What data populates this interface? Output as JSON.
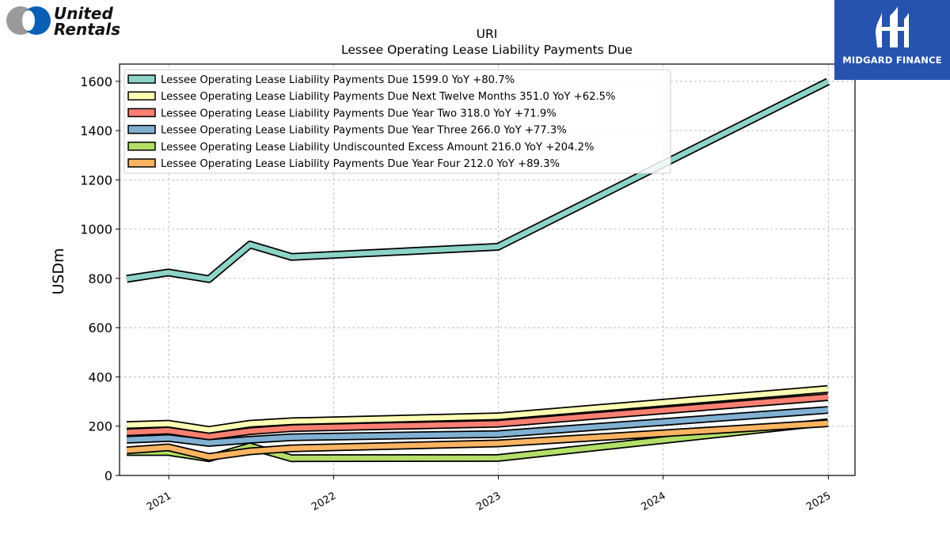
{
  "brand_left": {
    "name_line1": "United",
    "name_line2": "Rentals"
  },
  "brand_right": {
    "name": "MIDGARD FINANCE"
  },
  "chart_data": {
    "type": "area",
    "title": "URI",
    "subtitle": "Lessee Operating Lease Liability Payments Due",
    "xlabel": "",
    "ylabel": "USDm",
    "ylim": [
      0,
      1670
    ],
    "xlim": [
      "2020-09-14",
      "2025-03-01"
    ],
    "grid": true,
    "legend_position": "top-left",
    "yticks": [
      0,
      200,
      400,
      600,
      800,
      1000,
      1200,
      1400,
      1600
    ],
    "xticks": [
      {
        "date": "2021-01-01",
        "label": "2021"
      },
      {
        "date": "2022-01-01",
        "label": "2022"
      },
      {
        "date": "2023-01-01",
        "label": "2023"
      },
      {
        "date": "2024-01-01",
        "label": "2024"
      },
      {
        "date": "2025-01-01",
        "label": "2025"
      }
    ],
    "x": [
      "2020-09-30",
      "2020-12-31",
      "2021-03-31",
      "2021-06-30",
      "2021-09-30",
      "2022-12-31",
      "2024-12-31"
    ],
    "series": [
      {
        "name": "Lessee Operating Lease Liability Payments Due",
        "legend": "Lessee Operating Lease Liability Payments Due  1599.0 YoY +80.7%",
        "color": "#8dd3c7",
        "values": [
          798,
          824,
          797,
          937,
          887,
          928,
          1599
        ]
      },
      {
        "name": "Lessee Operating Lease Liability Payments Due Next Twelve Months",
        "legend": "Lessee Operating Lease Liability Payments Due Next Twelve Months  351.0 YoY +62.5%",
        "color": "#ffffb3",
        "values": [
          205,
          210,
          185,
          210,
          220,
          240,
          351
        ]
      },
      {
        "name": "Lessee Operating Lease Liability Payments Due Year Two",
        "legend": "Lessee Operating Lease Liability Payments Due Year Two  318.0 YoY +71.9%",
        "color": "#fb8072",
        "values": [
          175,
          182,
          158,
          180,
          192,
          210,
          318
        ]
      },
      {
        "name": "Lessee Operating Lease Liability Payments Due Year Three",
        "legend": "Lessee Operating Lease Liability Payments Due Year Three  266.0 YoY +77.3%",
        "color": "#80b1d3",
        "values": [
          145,
          152,
          132,
          145,
          155,
          168,
          266
        ]
      },
      {
        "name": "Lessee Operating Lease Liability Undiscounted Excess Amount",
        "legend": "Lessee Operating Lease Liability Undiscounted Excess Amount  216.0 YoY +204.2%",
        "color": "#b3de69",
        "values": [
          95,
          95,
          70,
          118,
          70,
          71,
          216
        ]
      },
      {
        "name": "Lessee Operating Lease Liability Payments Due Year Four",
        "legend": "Lessee Operating Lease Liability Payments Due Year Four  212.0 YoY +89.3%",
        "color": "#fdb462",
        "values": [
          102,
          114,
          75,
          98,
          110,
          130,
          212
        ]
      }
    ]
  }
}
